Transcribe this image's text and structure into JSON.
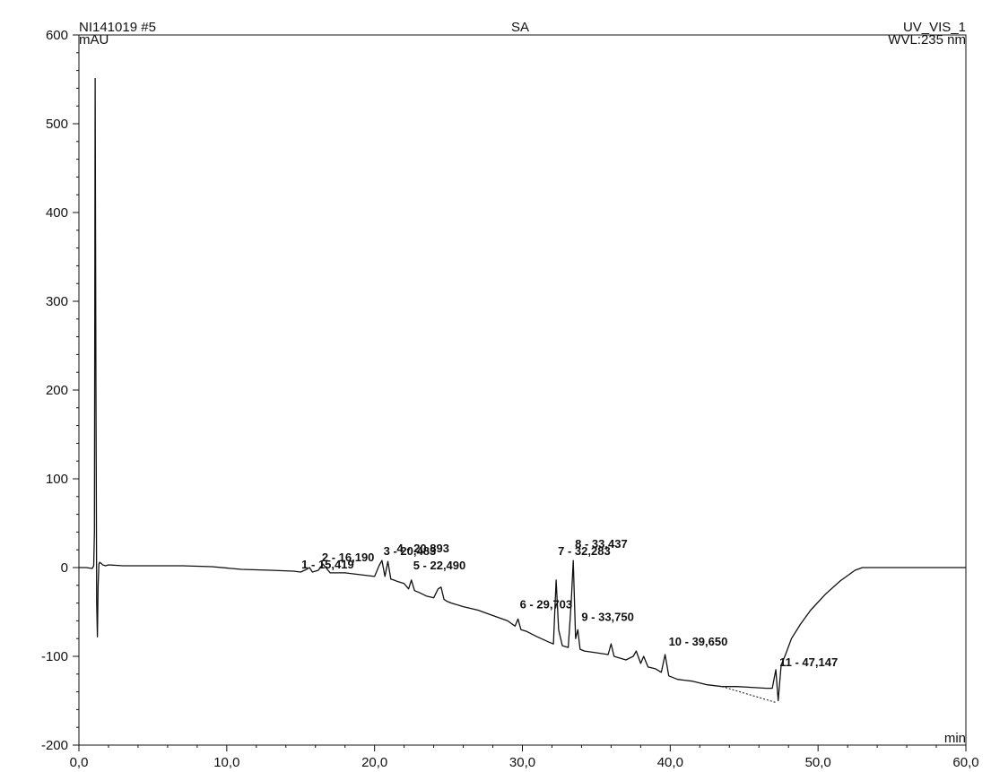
{
  "header": {
    "sample": "NI141019 #5",
    "name": "SA",
    "channel": "UV_VIS_1",
    "wavelength": "WVL:235 nm",
    "y_unit": "mAU"
  },
  "chart_data": {
    "type": "line",
    "title": "SA",
    "xlabel": "min",
    "ylabel": "mAU",
    "xlim": [
      0,
      60
    ],
    "ylim": [
      -200,
      600
    ],
    "grid": false,
    "x_ticks": [
      0,
      10,
      20,
      30,
      40,
      50,
      60
    ],
    "x_tick_labels": [
      "0,0",
      "10,0",
      "20,0",
      "30,0",
      "40,0",
      "50,0",
      "60,0"
    ],
    "y_ticks": [
      -200,
      -100,
      0,
      100,
      200,
      300,
      400,
      500,
      600
    ],
    "y_tick_labels": [
      "-200",
      "-100",
      "0",
      "100",
      "200",
      "300",
      "400",
      "500",
      "600"
    ],
    "series": [
      {
        "color": "#111111",
        "x": [
          0.0,
          0.5,
          0.9,
          1.0,
          1.05,
          1.1,
          1.15,
          1.2,
          1.25,
          1.3,
          1.35,
          1.4,
          1.45,
          1.5,
          1.6,
          1.8,
          2.0,
          3.0,
          5.0,
          7.0,
          9.0,
          11.0,
          13.0,
          14.5,
          15.0,
          15.4,
          15.6,
          15.8,
          16.2,
          16.5,
          17.0,
          18.0,
          19.0,
          20.0,
          20.3,
          20.5,
          20.7,
          20.9,
          21.1,
          21.3,
          21.6,
          22.0,
          22.3,
          22.49,
          22.7,
          23.0,
          23.5,
          24.0,
          24.3,
          24.5,
          24.7,
          24.9,
          25.2,
          26.0,
          27.0,
          28.0,
          29.0,
          29.5,
          29.7,
          29.9,
          30.3,
          31.0,
          31.8,
          32.1,
          32.28,
          32.45,
          32.7,
          33.1,
          33.3,
          33.437,
          33.6,
          33.75,
          33.9,
          34.2,
          35.0,
          35.8,
          36.0,
          36.2,
          37.0,
          37.5,
          37.7,
          38.0,
          38.2,
          38.5,
          39.0,
          39.4,
          39.65,
          39.9,
          40.5,
          41.5,
          42.5,
          43.5,
          44.5,
          45.5,
          46.5,
          46.9,
          47.147,
          47.3,
          47.5,
          47.8,
          48.2,
          48.8,
          49.5,
          50.5,
          51.5,
          52.5,
          53.0,
          54.0,
          56.0,
          58.0,
          60.0
        ],
        "y": [
          0,
          0,
          -1,
          2,
          40,
          551,
          200,
          -40,
          -78,
          -20,
          4,
          6,
          5,
          5,
          3,
          2,
          3,
          2,
          2,
          2,
          1,
          -2,
          -3,
          -4,
          -5,
          -2,
          0,
          -5,
          -3,
          4,
          -6,
          -6,
          -8,
          -10,
          2,
          8,
          -10,
          7,
          -13,
          -14,
          -16,
          -18,
          -24,
          -14,
          -26,
          -28,
          -32,
          -34,
          -24,
          -22,
          -36,
          -38,
          -40,
          -44,
          -48,
          -54,
          -60,
          -66,
          -58,
          -70,
          -72,
          -78,
          -84,
          -86,
          -14,
          -70,
          -88,
          -90,
          -40,
          8,
          -80,
          -70,
          -92,
          -94,
          -96,
          -98,
          -86,
          -100,
          -104,
          -100,
          -94,
          -108,
          -100,
          -112,
          -114,
          -118,
          -98,
          -122,
          -126,
          -128,
          -132,
          -134,
          -134,
          -135,
          -136,
          -136,
          -115,
          -150,
          -110,
          -98,
          -80,
          -64,
          -48,
          -30,
          -15,
          -3,
          0,
          0,
          0,
          0,
          0
        ]
      }
    ],
    "peaks": [
      {
        "label": "1 - 15,419",
        "x": 15.419,
        "y": -5
      },
      {
        "label": "2 - 16,190",
        "x": 16.19,
        "y": -3
      },
      {
        "label": "3 - 20,483",
        "x": 20.483,
        "y": 8
      },
      {
        "label": "4 - 20,893",
        "x": 20.893,
        "y": 7
      },
      {
        "label": "5 - 22,490",
        "x": 22.49,
        "y": -14
      },
      {
        "label": "6 - 29,703",
        "x": 29.703,
        "y": -58
      },
      {
        "label": "7 - 32,283",
        "x": 32.283,
        "y": -14
      },
      {
        "label": "8 - 33,437",
        "x": 33.437,
        "y": 8
      },
      {
        "label": "9 - 33,750",
        "x": 33.75,
        "y": -70
      },
      {
        "label": "10 - 39,650",
        "x": 39.65,
        "y": -98
      },
      {
        "label": "11 - 47,147",
        "x": 47.147,
        "y": -115
      }
    ],
    "baseline": {
      "x": [
        43.5,
        47.147
      ],
      "y": [
        -134,
        -152
      ]
    }
  }
}
